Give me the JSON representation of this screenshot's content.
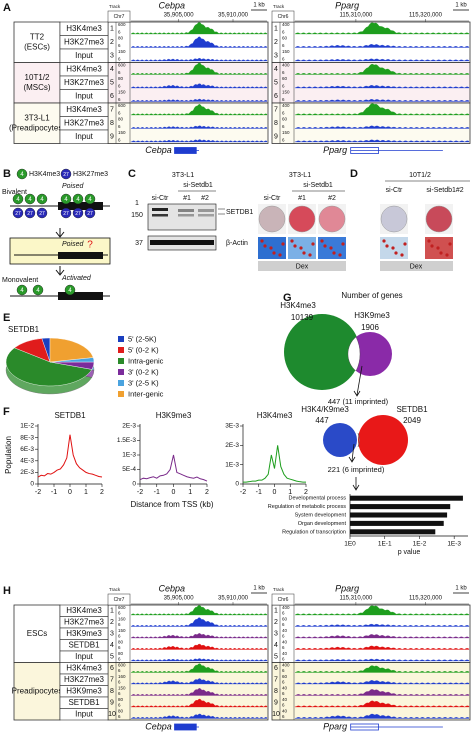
{
  "panel_a": {
    "letter": "A",
    "groups": [
      {
        "lines": [
          "TT2",
          "(ESCs)"
        ],
        "background": "#ffffff",
        "tracks": [
          {
            "num": "1",
            "mark": "H3K4me3",
            "color": "#1e9e1e"
          },
          {
            "num": "2",
            "mark": "H3K27me3",
            "color": "#1f3ccf"
          },
          {
            "num": "3",
            "mark": "Input",
            "color": "#1f3ccf"
          }
        ]
      },
      {
        "lines": [
          "10T1/2",
          "(MSCs)"
        ],
        "background": "#fbeff2",
        "tracks": [
          {
            "num": "4",
            "mark": "H3K4me3",
            "color": "#1e9e1e"
          },
          {
            "num": "5",
            "mark": "H3K27me3",
            "color": "#1f3ccf"
          },
          {
            "num": "6",
            "mark": "Input",
            "color": "#1f3ccf"
          }
        ]
      },
      {
        "lines": [
          "3T3-L1",
          "(Preadipocytes)"
        ],
        "background": "#fdfbf0",
        "tracks": [
          {
            "num": "7",
            "mark": "H3K4me3",
            "color": "#1e9e1e"
          },
          {
            "num": "8",
            "mark": "H3K27me3",
            "color": "#1f3ccf"
          },
          {
            "num": "9",
            "mark": "Input",
            "color": "#1f3ccf"
          }
        ]
      }
    ],
    "browsers": [
      {
        "track_label": "Track",
        "chr": "Chr7",
        "gene": "Cebpa",
        "coords": [
          "35,905,000",
          "35,910,000"
        ],
        "scale_bar": "1 kb",
        "scales": [
          [
            "600",
            "6"
          ],
          [
            "80",
            "6"
          ],
          [
            "150",
            "6"
          ],
          [
            "600",
            "6"
          ],
          [
            "80",
            "6"
          ],
          [
            "150",
            "6"
          ],
          [
            "600",
            "6"
          ],
          [
            "80",
            "6"
          ],
          [
            "150",
            "6"
          ]
        ]
      },
      {
        "track_label": "Track",
        "chr": "Chr6",
        "gene": "Pparg",
        "coords": [
          "115,310,000",
          "115,320,000"
        ],
        "scale_bar": "1 kb",
        "scales": [
          [
            "400",
            "6"
          ],
          [
            "60",
            "6"
          ],
          [
            "150",
            "6"
          ],
          [
            "400",
            "6"
          ],
          [
            "60",
            "6"
          ],
          [
            "150",
            "6"
          ],
          [
            "400",
            "6"
          ],
          [
            "60",
            "6"
          ],
          [
            "150",
            "6"
          ]
        ]
      }
    ]
  },
  "panel_b": {
    "letter": "B",
    "legend": [
      {
        "num": "4",
        "label": "H3K4me3"
      },
      {
        "num": "27",
        "label": "H3K27me3"
      }
    ],
    "bivalent": "Bivalent",
    "poised_top": "Poised",
    "poised_mid": "Poised",
    "question": "?",
    "monovalent": "Monovalent",
    "activated": "Activated"
  },
  "panel_c": {
    "letter": "C",
    "blot": {
      "cell": "3T3-L1",
      "si": "si-Setdb1",
      "lanes": [
        "si-Ctr",
        "#1",
        "#2"
      ],
      "markers": [
        "1",
        "150",
        "37"
      ],
      "proteins": [
        "SETDB1",
        "β-Actin"
      ]
    },
    "stain": {
      "cell": "3T3-L1",
      "si": "si-Setdb1",
      "lanes": [
        "si-Ctr",
        "#1",
        "#2"
      ],
      "treatment": "Dex"
    }
  },
  "panel_d": {
    "letter": "D",
    "cell": "10T1/2",
    "lanes": [
      "si-Ctr",
      "si-Setdb1#2"
    ],
    "treatment": "Dex"
  },
  "panel_e": {
    "letter": "E"
  },
  "panel_f": {
    "letter": "F",
    "y_label": "Population",
    "x_label": "Distance from TSS (kb)"
  },
  "panel_g": {
    "letter": "G",
    "title": "Number of genes",
    "venn1": {
      "a_label": "H3K4me3",
      "a_count": 10139,
      "b_label": "H3K9me3",
      "b_count": 1906,
      "overlap": "447 (11 imprinted)"
    },
    "venn2": {
      "a_label": "H3K4/K9me3",
      "a_count": 447,
      "b_label": "SETDB1",
      "b_count": 2049,
      "overlap": "221 (6 imprinted)"
    }
  },
  "panel_h": {
    "letter": "H",
    "groups": [
      {
        "lines": [
          "ESCs"
        ],
        "background": "#ffffff",
        "tracks": [
          {
            "num": "1",
            "mark": "H3K4me3",
            "color": "#1e9e1e"
          },
          {
            "num": "2",
            "mark": "H3K27me3",
            "color": "#1f3ccf"
          },
          {
            "num": "3",
            "mark": "H3K9me3",
            "color": "#7a2a8a"
          },
          {
            "num": "4",
            "mark": "SETDB1",
            "color": "#e01010"
          },
          {
            "num": "5",
            "mark": "Input",
            "color": "#1f3ccf"
          }
        ]
      },
      {
        "lines": [
          "Preadipocytes"
        ],
        "background": "#fbf6dc",
        "tracks": [
          {
            "num": "6",
            "mark": "H3K4me3",
            "color": "#1e9e1e"
          },
          {
            "num": "7",
            "mark": "H3K27me3",
            "color": "#1f3ccf"
          },
          {
            "num": "8",
            "mark": "H3K9me3",
            "color": "#7a2a8a"
          },
          {
            "num": "9",
            "mark": "SETDB1",
            "color": "#e01010"
          },
          {
            "num": "10",
            "mark": "Input",
            "color": "#1f3ccf"
          }
        ]
      }
    ],
    "browsers": [
      {
        "track_label": "Track",
        "chr": "Chr7",
        "gene": "Cebpa",
        "coords": [
          "35,905,000",
          "35,910,000"
        ],
        "scale_bar": "1 kb",
        "scales": [
          [
            "600",
            "6"
          ],
          [
            "160",
            "6"
          ],
          [
            "150",
            "6"
          ],
          [
            "80",
            "6"
          ],
          [
            "80",
            "6"
          ],
          [
            "600",
            "6"
          ],
          [
            "160",
            "6"
          ],
          [
            "150",
            "6"
          ],
          [
            "80",
            "6"
          ],
          [
            "80",
            "6"
          ]
        ]
      },
      {
        "track_label": "Track",
        "chr": "Chr6",
        "gene": "Pparg",
        "coords": [
          "115,310,000",
          "115,320,000"
        ],
        "scale_bar": "1 kb",
        "scales": [
          [
            "400",
            "6"
          ],
          [
            "60",
            "6"
          ],
          [
            "40",
            "6"
          ],
          [
            "40",
            "6"
          ],
          [
            "40",
            "6"
          ],
          [
            "400",
            "6"
          ],
          [
            "60",
            "6"
          ],
          [
            "40",
            "6"
          ],
          [
            "40",
            "6"
          ],
          [
            "40",
            "6"
          ]
        ]
      }
    ]
  },
  "chart_data": [
    {
      "type": "pie",
      "title": "SETDB1",
      "categories": [
        "5' (2-5K)",
        "5' (0-2 K)",
        "Intra-genic",
        "3' (0-2 K)",
        "3' (2-5 K)",
        "Inter-genic"
      ],
      "values": [
        3,
        12,
        55,
        5,
        3,
        22
      ],
      "colors": [
        "#1a3fbf",
        "#e01c1c",
        "#2a8a2a",
        "#7b2b9b",
        "#4aa3df",
        "#f0a030"
      ]
    },
    {
      "type": "line",
      "title": "SETDB1",
      "x": [
        -2,
        -1.8,
        -1.6,
        -1.4,
        -1.2,
        -1,
        -0.8,
        -0.6,
        -0.4,
        -0.2,
        0,
        0.2,
        0.4,
        0.6,
        0.8,
        1,
        1.2,
        1.4,
        1.6,
        1.8,
        2
      ],
      "series": [
        {
          "color": "#e01010",
          "values": [
            0.0012,
            0.0015,
            0.0014,
            0.0018,
            0.0017,
            0.002,
            0.0024,
            0.0026,
            0.0033,
            0.0045,
            0.0085,
            0.005,
            0.0035,
            0.0028,
            0.0024,
            0.002,
            0.0018,
            0.0017,
            0.0015,
            0.0013,
            0.0012
          ]
        }
      ],
      "xlim": [
        -2,
        2
      ],
      "ylim": [
        0,
        0.01
      ],
      "xticks": [
        -2,
        -1,
        0,
        1,
        2
      ],
      "yticks": [
        0,
        {
          "value": 0.002,
          "label": "2E-3"
        },
        {
          "value": 0.004,
          "label": "4E-3"
        },
        {
          "value": 0.006,
          "label": "6E-3"
        },
        {
          "value": 0.008,
          "label": "8E-3"
        },
        {
          "value": 0.01,
          "label": "1E-2"
        }
      ]
    },
    {
      "type": "line",
      "title": "H3K9me3",
      "x": [
        -2,
        -1.8,
        -1.6,
        -1.4,
        -1.2,
        -1,
        -0.8,
        -0.6,
        -0.4,
        -0.2,
        0,
        0.2,
        0.4,
        0.6,
        0.8,
        1,
        1.2,
        1.4,
        1.6,
        1.8,
        2
      ],
      "series": [
        {
          "color": "#7a2a8a",
          "values": [
            0.00015,
            0.0002,
            0.00018,
            0.00022,
            0.00025,
            0.0002,
            0.00028,
            0.0003,
            0.00035,
            0.0005,
            0.001,
            0.0004,
            0.00035,
            0.0003,
            0.00025,
            0.00022,
            0.0002,
            0.00024,
            0.00018,
            0.00015,
            0.0001
          ]
        }
      ],
      "xlim": [
        -2,
        2
      ],
      "ylim": [
        0,
        0.002
      ],
      "xticks": [
        -2,
        -1,
        0,
        1,
        2
      ],
      "yticks": [
        0,
        {
          "value": 0.0005,
          "label": "5E-4"
        },
        {
          "value": 0.001,
          "label": "1E-3"
        },
        {
          "value": 0.0015,
          "label": "1.5E-3"
        },
        {
          "value": 0.002,
          "label": "2E-3"
        }
      ]
    },
    {
      "type": "line",
      "title": "H3K4me3",
      "x": [
        -2,
        -1.8,
        -1.6,
        -1.4,
        -1.2,
        -1,
        -0.8,
        -0.6,
        -0.4,
        -0.2,
        0,
        0.2,
        0.4,
        0.6,
        0.8,
        1,
        1.2,
        1.4,
        1.6,
        1.8,
        2
      ],
      "series": [
        {
          "color": "#1e9e1e",
          "values": [
            0.0001,
            0.0001,
            0.00012,
            0.00015,
            0.00015,
            0.0002,
            0.0002,
            0.0003,
            0.0005,
            0.0015,
            0.0008,
            0.002,
            0.0009,
            0.0005,
            0.0003,
            0.00025,
            0.0002,
            0.00015,
            0.00012,
            0.0001,
            0.0001
          ]
        }
      ],
      "xlim": [
        -2,
        2
      ],
      "ylim": [
        0,
        0.003
      ],
      "xticks": [
        -2,
        -1,
        0,
        1,
        2
      ],
      "yticks": [
        0,
        {
          "value": 0.001,
          "label": "1E-3"
        },
        {
          "value": 0.002,
          "label": "2E-3"
        },
        {
          "value": 0.003,
          "label": "3E-3"
        }
      ]
    },
    {
      "type": "bar",
      "orientation": "horizontal",
      "categories": [
        "Developmental process",
        "Regulation of metabolic process",
        "System development",
        "Organ development",
        "Regulation of transcription"
      ],
      "values": [
        0.00056,
        0.0013,
        0.0016,
        0.002,
        0.0035
      ],
      "color": "#111111",
      "log_scale": true,
      "xlim": [
        1,
        0.0004
      ],
      "xticks": [
        {
          "value": 1,
          "label": "1E0"
        },
        {
          "value": 0.1,
          "label": "1E-1"
        },
        {
          "value": 0.01,
          "label": "1E-2"
        },
        {
          "value": 0.001,
          "label": "1E-3"
        }
      ],
      "x_label": "p value"
    }
  ]
}
